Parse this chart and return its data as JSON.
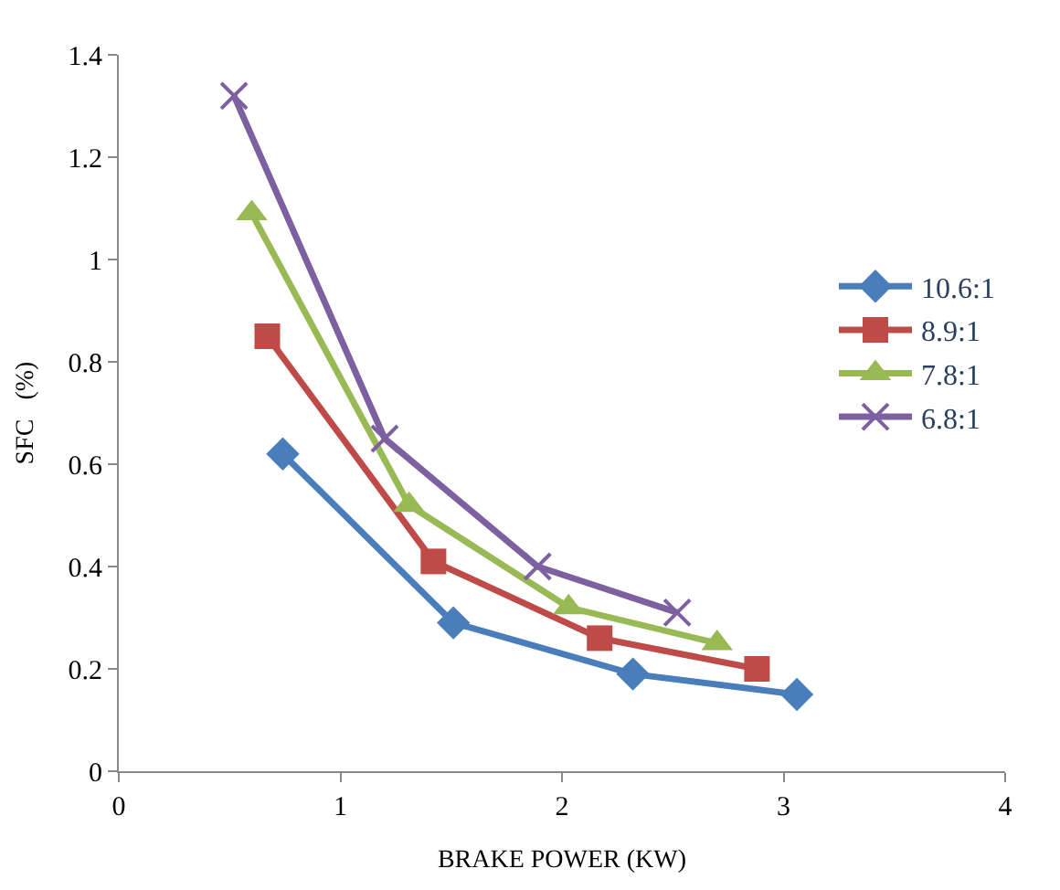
{
  "chart_data": {
    "type": "line",
    "xlabel": "BRAKE POWER (KW)",
    "ylabel": "SFC   (%)",
    "xlim": [
      0,
      4
    ],
    "xticks": [
      0,
      1,
      2,
      3,
      4
    ],
    "ylim": [
      0,
      1.4
    ],
    "yticks": [
      0,
      0.2,
      0.4,
      0.6,
      0.8,
      1,
      1.2,
      1.4
    ],
    "legend": "right",
    "series": [
      {
        "name": "10.6:1",
        "color": "#4a7ebb",
        "marker": "diamond",
        "x": [
          0.74,
          1.51,
          2.32,
          3.06
        ],
        "values": [
          0.62,
          0.29,
          0.19,
          0.15
        ]
      },
      {
        "name": "8.9:1",
        "color": "#be4b48",
        "marker": "square",
        "x": [
          0.67,
          1.42,
          2.17,
          2.88
        ],
        "values": [
          0.85,
          0.41,
          0.26,
          0.2
        ]
      },
      {
        "name": "7.8:1",
        "color": "#98b954",
        "marker": "triangle",
        "x": [
          0.6,
          1.31,
          2.03,
          2.7
        ],
        "values": [
          1.09,
          0.52,
          0.32,
          0.25
        ]
      },
      {
        "name": "6.8:1",
        "color": "#7d60a0",
        "marker": "cross",
        "x": [
          0.52,
          1.2,
          1.89,
          2.52
        ],
        "values": [
          1.32,
          0.65,
          0.4,
          0.31
        ]
      }
    ]
  }
}
